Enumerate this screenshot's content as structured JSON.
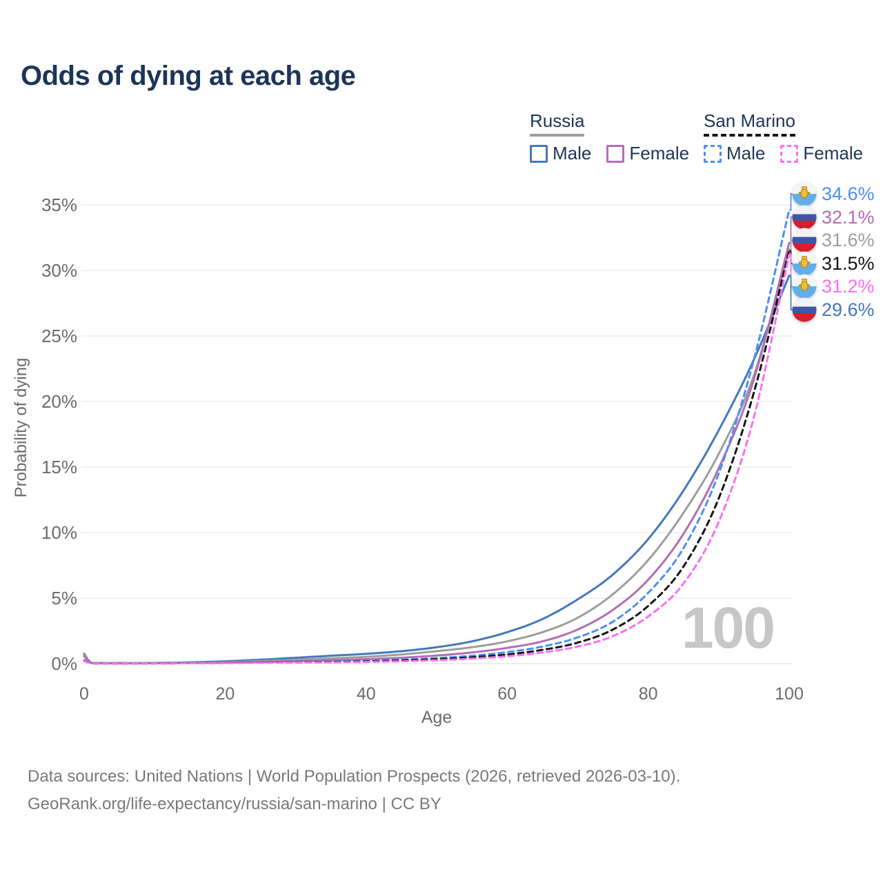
{
  "title": "Odds of dying at each age",
  "legend": {
    "groups": [
      {
        "name": "Russia",
        "line_style": "solid",
        "line_color": "#9d9d9d",
        "items": [
          {
            "label": "Male",
            "color": "#4377bd",
            "style": "solid"
          },
          {
            "label": "Female",
            "color": "#b26db3",
            "style": "solid"
          }
        ]
      },
      {
        "name": "San Marino",
        "line_style": "dashed",
        "line_color": "#141414",
        "items": [
          {
            "label": "Male",
            "color": "#4b8ef6",
            "style": "dashed"
          },
          {
            "label": "Female",
            "color": "#fc6ef3",
            "style": "dashed"
          }
        ]
      }
    ]
  },
  "chart_data": {
    "type": "line",
    "title": "Odds of dying at each age",
    "xlabel": "Age",
    "ylabel": "Probability of dying",
    "xticks": [
      0,
      20,
      40,
      60,
      80,
      100
    ],
    "ytick_labels": [
      "0%",
      "5%",
      "10%",
      "15%",
      "20%",
      "25%",
      "30%",
      "35%"
    ],
    "ytick_values": [
      0,
      5,
      10,
      15,
      20,
      25,
      30,
      35
    ],
    "xlim": [
      0,
      100
    ],
    "ylim_pct": [
      0,
      35
    ],
    "grid": "horizontal",
    "cursor_age_label": "100",
    "x": [
      0,
      1,
      5,
      10,
      15,
      20,
      25,
      30,
      35,
      40,
      45,
      50,
      55,
      60,
      65,
      70,
      75,
      80,
      85,
      90,
      95,
      100
    ],
    "series": [
      {
        "name": "Russia Male",
        "country": "Russia",
        "sex": "Male",
        "flag": "ru",
        "color": "#4377bd",
        "dash": false,
        "end_label": "29.6%",
        "values_pct": [
          0.75,
          0.06,
          0.04,
          0.05,
          0.1,
          0.18,
          0.3,
          0.45,
          0.6,
          0.75,
          0.95,
          1.25,
          1.7,
          2.4,
          3.4,
          4.9,
          6.8,
          9.5,
          13.2,
          17.8,
          23.2,
          29.6
        ]
      },
      {
        "name": "Russia Both sexes",
        "country": "Russia",
        "sex": "Both",
        "flag": "ru",
        "color": "#9d9d9d",
        "dash": false,
        "end_label": "31.6%",
        "values_pct": [
          0.65,
          0.05,
          0.03,
          0.04,
          0.07,
          0.12,
          0.2,
          0.3,
          0.4,
          0.52,
          0.7,
          0.95,
          1.25,
          1.7,
          2.4,
          3.5,
          5.3,
          7.9,
          11.5,
          16.0,
          22.0,
          31.6
        ]
      },
      {
        "name": "Russia Female",
        "country": "Russia",
        "sex": "Female",
        "flag": "ru",
        "color": "#b26db3",
        "dash": false,
        "end_label": "32.1%",
        "values_pct": [
          0.55,
          0.05,
          0.02,
          0.03,
          0.05,
          0.08,
          0.12,
          0.18,
          0.25,
          0.34,
          0.45,
          0.62,
          0.85,
          1.2,
          1.7,
          2.6,
          4.1,
          6.4,
          9.9,
          14.9,
          21.7,
          32.1
        ]
      },
      {
        "name": "San Marino Male",
        "country": "San Marino",
        "sex": "Male",
        "flag": "sm",
        "color": "#4b8ef6",
        "dash": true,
        "end_label": "34.6%",
        "values_pct": [
          0.25,
          0.02,
          0.015,
          0.02,
          0.04,
          0.07,
          0.1,
          0.13,
          0.17,
          0.22,
          0.3,
          0.42,
          0.6,
          0.88,
          1.3,
          2.0,
          3.2,
          5.4,
          8.8,
          14.5,
          23.2,
          34.6
        ]
      },
      {
        "name": "San Marino Both sexes",
        "country": "San Marino",
        "sex": "Both",
        "flag": "sm",
        "color": "#141414",
        "dash": true,
        "end_label": "31.5%",
        "values_pct": [
          0.22,
          0.018,
          0.012,
          0.018,
          0.03,
          0.05,
          0.08,
          0.1,
          0.13,
          0.17,
          0.24,
          0.34,
          0.48,
          0.7,
          1.05,
          1.6,
          2.6,
          4.4,
          7.4,
          12.6,
          20.7,
          31.5
        ]
      },
      {
        "name": "San Marino Female",
        "country": "San Marino",
        "sex": "Female",
        "flag": "sm",
        "color": "#fc6ef3",
        "dash": true,
        "end_label": "31.2%",
        "values_pct": [
          0.2,
          0.015,
          0.01,
          0.015,
          0.025,
          0.04,
          0.06,
          0.08,
          0.1,
          0.13,
          0.18,
          0.26,
          0.38,
          0.56,
          0.85,
          1.3,
          2.1,
          3.6,
          6.1,
          10.8,
          18.8,
          31.2
        ]
      }
    ]
  },
  "footer": {
    "line1": "Data sources: United Nations | World Population Prospects (2026, retrieved 2026-03-10).",
    "line2": "GeoRank.org/life-expectancy/russia/san-marino | CC BY"
  },
  "colors": {
    "title_text": "#1c3557",
    "axis_text": "#6b6b6b",
    "gridline": "#ebebeb",
    "zero_line": "#e2e2e2",
    "watermark": "#c7c7c7",
    "russia_flag_blue": "#3d57a6",
    "russia_flag_red": "#d51f2e",
    "san_marino_flag_blue": "#62aeea",
    "san_marino_emblem_gold": "#f0bc3a"
  }
}
